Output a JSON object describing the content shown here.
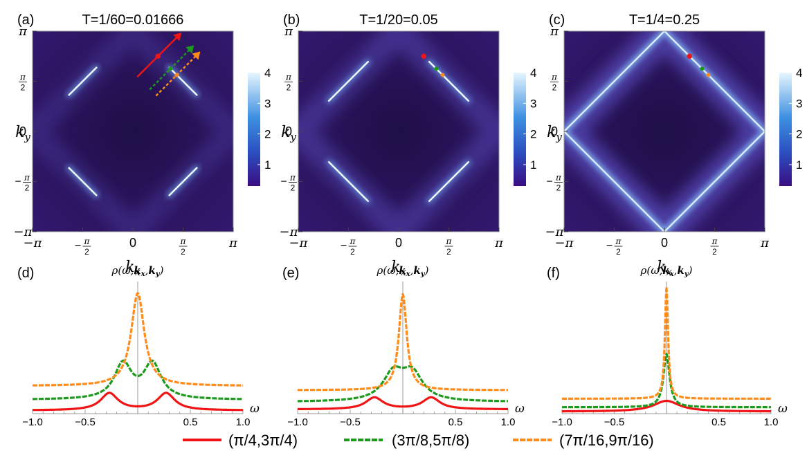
{
  "colors": {
    "red": "#f01414",
    "green": "#1c9a1c",
    "orange": "#ff8c1a",
    "map_dark": "#24114f",
    "map_mid": "#3b1a7a",
    "map_light": "#eaf6ff",
    "cbar_low": "#3a0d83",
    "cbar_high": "#e6f6ff"
  },
  "chart_data": [
    {
      "panel": "(a)",
      "type": "heatmap",
      "title": "T=1/60=0.01666",
      "xlabel": "kx",
      "ylabel": "ky",
      "xticks": [
        "−π",
        "−π/2",
        "0",
        "π/2",
        "π"
      ],
      "yticks": [
        "π",
        "π/2",
        "0",
        "−π/2",
        "−π"
      ],
      "colorbar": {
        "range": [
          0.3,
          4
        ],
        "ticks": [
          "1",
          "2",
          "3",
          "4"
        ]
      },
      "feature": "bright Fermi-arc segments near (±π/2, ±π/2)",
      "markers": [
        {
          "k": "(π/4,3π/4)",
          "color": "red"
        },
        {
          "k": "(3π/8,5π/8)",
          "color": "green"
        },
        {
          "k": "(7π/16,9π/16)",
          "color": "orange"
        }
      ]
    },
    {
      "panel": "(b)",
      "type": "heatmap",
      "title": "T=1/20=0.05",
      "xlabel": "kx",
      "ylabel": "ky",
      "xticks": [
        "−π",
        "−π/2",
        "0",
        "π/2",
        "π"
      ],
      "yticks": [
        "π",
        "π/2",
        "0",
        "−π/2",
        "−π"
      ],
      "colorbar": {
        "range": [
          0.3,
          4
        ],
        "ticks": [
          "1",
          "2",
          "3",
          "4"
        ]
      },
      "feature": "longer arcs with faint connecting contour"
    },
    {
      "panel": "(c)",
      "type": "heatmap",
      "title": "T=1/4=0.25",
      "xlabel": "kx",
      "ylabel": "ky",
      "xticks": [
        "−π",
        "−π/2",
        "0",
        "π/2",
        "π"
      ],
      "yticks": [
        "π",
        "π/2",
        "0",
        "−π/2",
        "−π"
      ],
      "colorbar": {
        "range": [
          0.3,
          4
        ],
        "ticks": [
          "1",
          "2",
          "3",
          "4"
        ]
      },
      "feature": "closed diamond-shaped Fermi surface"
    },
    {
      "panel": "(d)",
      "type": "line",
      "ylabel": "ρ(ω,kx,ky)",
      "xlabel": "ω",
      "xlim": [
        -1,
        1
      ],
      "ylim": [
        0,
        1.2
      ],
      "xticks": [
        "−1.0",
        "−0.5",
        "0.5",
        "1.0"
      ],
      "series": [
        {
          "name": "(π/4,3π/4)",
          "color": "red",
          "base": 0.03,
          "peaks": [
            [
              -0.27,
              0.16,
              0.1
            ],
            [
              0.27,
              0.16,
              0.1
            ]
          ]
        },
        {
          "name": "(3π/8,5π/8)",
          "color": "green",
          "base": 0.13,
          "peaks": [
            [
              -0.14,
              0.33,
              0.1
            ],
            [
              0.14,
              0.33,
              0.1
            ]
          ]
        },
        {
          "name": "(7π/16,9π/16)",
          "color": "orange",
          "base": 0.26,
          "peaks": [
            [
              0,
              0.87,
              0.075
            ]
          ]
        }
      ]
    },
    {
      "panel": "(e)",
      "type": "line",
      "ylabel": "ρ(ω,kx,ky)",
      "xlabel": "ω",
      "xlim": [
        -1,
        1
      ],
      "ylim": [
        0,
        1.2
      ],
      "xticks": [
        "−1.0",
        "−0.5",
        "0.5",
        "1.0"
      ],
      "series": [
        {
          "name": "(π/4,3π/4)",
          "color": "red",
          "base": 0.04,
          "peaks": [
            [
              -0.27,
              0.11,
              0.1
            ],
            [
              0.27,
              0.11,
              0.1
            ]
          ]
        },
        {
          "name": "(3π/8,5π/8)",
          "color": "green",
          "base": 0.11,
          "peaks": [
            [
              -0.09,
              0.25,
              0.12
            ],
            [
              0.09,
              0.25,
              0.12
            ]
          ]
        },
        {
          "name": "(7π/16,9π/16)",
          "color": "orange",
          "base": 0.22,
          "peaks": [
            [
              0,
              0.9,
              0.045
            ]
          ]
        }
      ]
    },
    {
      "panel": "(f)",
      "type": "line",
      "ylabel": "ρ(ω,kx,ky)",
      "xlabel": "ω",
      "xlim": [
        -1,
        1
      ],
      "ylim": [
        0,
        1.2
      ],
      "xticks": [
        "−1.0",
        "−0.5",
        "0.5",
        "1.0"
      ],
      "series": [
        {
          "name": "(π/4,3π/4)",
          "color": "red",
          "base": 0.02,
          "peaks": [
            [
              0,
              0.1,
              0.15
            ]
          ]
        },
        {
          "name": "(3π/8,5π/8)",
          "color": "green",
          "base": 0.06,
          "peaks": [
            [
              0,
              0.5,
              0.035
            ]
          ]
        },
        {
          "name": "(7π/16,9π/16)",
          "color": "orange",
          "base": 0.14,
          "peaks": [
            [
              0,
              1.05,
              0.018
            ]
          ]
        }
      ]
    }
  ],
  "legend": [
    {
      "label": "(π/4,3π/4)",
      "color": "red"
    },
    {
      "label": "(3π/8,5π/8)",
      "color": "green"
    },
    {
      "label": "(7π/16,9π/16)",
      "color": "orange"
    }
  ]
}
